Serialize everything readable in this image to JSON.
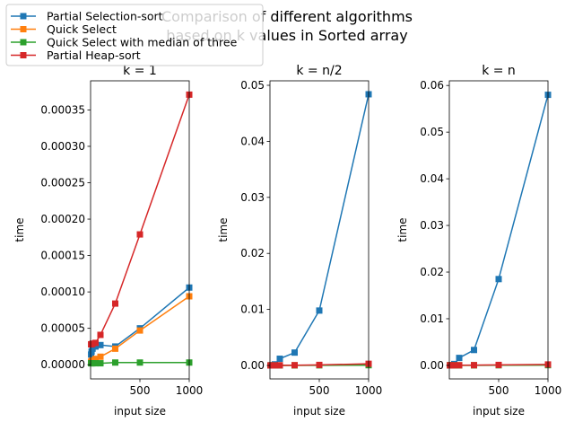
{
  "figure": {
    "suptitle_line1": "Comparison of different algorithms",
    "suptitle_line2": "based on k values in Sorted array"
  },
  "legend": {
    "placement": "upper-left",
    "entries": [
      {
        "name": "Partial Selection-sort",
        "color": "#1f77b4"
      },
      {
        "name": "Quick Select",
        "color": "#ff7f0e"
      },
      {
        "name": "Quick Select with median of three",
        "color": "#2ca02c"
      },
      {
        "name": "Partial Heap-sort",
        "color": "#d62728"
      }
    ]
  },
  "chart_data": [
    {
      "type": "line",
      "title": "k = 1",
      "xlabel": "input size",
      "ylabel": "time",
      "xlim": [
        0,
        1000
      ],
      "ylim": [
        -1.95e-05,
        0.00039
      ],
      "xticks": [
        500,
        1000
      ],
      "xtick_labels": [
        "500",
        "1000"
      ],
      "yticks": [
        0,
        5e-05,
        0.0001,
        0.00015,
        0.0002,
        0.00025,
        0.0003,
        0.00035
      ],
      "ytick_labels": [
        "0.00000",
        "0.00005",
        "0.00010",
        "0.00015",
        "0.00020",
        "0.00025",
        "0.00030",
        "0.00035"
      ],
      "x": [
        5,
        10,
        20,
        50,
        100,
        250,
        500,
        1000
      ],
      "series": [
        {
          "name": "Partial Selection-sort",
          "color": "#1f77b4",
          "values": [
            1.4e-05,
            1.8e-05,
            2.2e-05,
            2.5e-05,
            2.7e-05,
            2.5e-05,
            5e-05,
            0.000106
          ]
        },
        {
          "name": "Quick Select",
          "color": "#ff7f0e",
          "values": [
            4e-06,
            5e-06,
            6e-06,
            8e-06,
            1.1e-05,
            2.2e-05,
            4.7e-05,
            9.4e-05
          ]
        },
        {
          "name": "Quick Select with median of three",
          "color": "#2ca02c",
          "values": [
            2e-06,
            2e-06,
            2e-06,
            2e-06,
            2e-06,
            3e-06,
            3e-06,
            3e-06
          ]
        },
        {
          "name": "Partial Heap-sort",
          "color": "#d62728",
          "values": [
            2.8e-05,
            2.8e-05,
            2.9e-05,
            3e-05,
            4.1e-05,
            8.4e-05,
            0.000179,
            0.000371
          ]
        }
      ]
    },
    {
      "type": "line",
      "title": "k = n/2",
      "xlabel": "input size",
      "ylabel": "time",
      "xlim": [
        0,
        1000
      ],
      "ylim": [
        -0.0024,
        0.0508
      ],
      "xticks": [
        500,
        1000
      ],
      "xtick_labels": [
        "500",
        "1000"
      ],
      "yticks": [
        0,
        0.01,
        0.02,
        0.03,
        0.04,
        0.05
      ],
      "ytick_labels": [
        "0.00",
        "0.01",
        "0.02",
        "0.03",
        "0.04",
        "0.05"
      ],
      "x": [
        5,
        10,
        20,
        50,
        100,
        250,
        500,
        1000
      ],
      "series": [
        {
          "name": "Partial Selection-sort",
          "color": "#1f77b4",
          "values": [
            1e-05,
            2e-05,
            5e-05,
            0.0002,
            0.0012,
            0.0023,
            0.0098,
            0.0484
          ]
        },
        {
          "name": "Quick Select",
          "color": "#ff7f0e",
          "values": [
            1e-05,
            1e-05,
            1e-05,
            1e-05,
            2e-05,
            3e-05,
            6e-05,
            0.0001
          ]
        },
        {
          "name": "Quick Select with median of three",
          "color": "#2ca02c",
          "values": [
            1e-05,
            1e-05,
            1e-05,
            1e-05,
            1e-05,
            2e-05,
            3e-05,
            5e-05
          ]
        },
        {
          "name": "Partial Heap-sort",
          "color": "#d62728",
          "values": [
            1e-05,
            1e-05,
            1e-05,
            2e-05,
            3e-05,
            5e-05,
            0.0001,
            0.0003
          ]
        }
      ]
    },
    {
      "type": "line",
      "title": "k = n",
      "xlabel": "input size",
      "ylabel": "time",
      "xlim": [
        0,
        1000
      ],
      "ylim": [
        -0.0029,
        0.061
      ],
      "xticks": [
        500,
        1000
      ],
      "xtick_labels": [
        "500",
        "1000"
      ],
      "yticks": [
        0,
        0.01,
        0.02,
        0.03,
        0.04,
        0.05,
        0.06
      ],
      "ytick_labels": [
        "0.00",
        "0.01",
        "0.02",
        "0.03",
        "0.04",
        "0.05",
        "0.06"
      ],
      "x": [
        5,
        10,
        20,
        50,
        100,
        250,
        500,
        1000
      ],
      "series": [
        {
          "name": "Partial Selection-sort",
          "color": "#1f77b4",
          "values": [
            1e-05,
            2e-05,
            5e-05,
            0.0003,
            0.0016,
            0.0033,
            0.0185,
            0.058
          ]
        },
        {
          "name": "Quick Select",
          "color": "#ff7f0e",
          "values": [
            1e-05,
            1e-05,
            1e-05,
            1e-05,
            2e-05,
            3e-05,
            6e-05,
            0.0001
          ]
        },
        {
          "name": "Quick Select with median of three",
          "color": "#2ca02c",
          "values": [
            1e-05,
            1e-05,
            1e-05,
            1e-05,
            1e-05,
            2e-05,
            3e-05,
            5e-05
          ]
        },
        {
          "name": "Partial Heap-sort",
          "color": "#d62728",
          "values": [
            1e-05,
            1e-05,
            1e-05,
            2e-05,
            3e-05,
            5e-05,
            0.0001,
            0.0002
          ]
        }
      ]
    }
  ]
}
